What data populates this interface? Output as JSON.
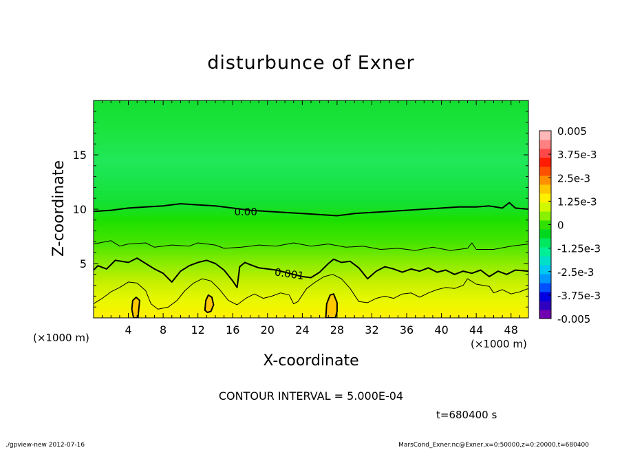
{
  "chart_data": {
    "type": "contour",
    "title": "disturbunce of Exner",
    "xlabel": "X-coordinate",
    "ylabel": "Z-coordinate",
    "x_unit_label": "(×1000 m)",
    "xlim": [
      0,
      50
    ],
    "ylim": [
      0,
      20
    ],
    "x_ticks": [
      4,
      8,
      12,
      16,
      20,
      24,
      28,
      32,
      36,
      40,
      44,
      48
    ],
    "y_ticks": [
      5,
      10,
      15
    ],
    "contour_interval_text": "CONTOUR INTERVAL = 5.000E-04",
    "contour_labels": [
      {
        "text": "0.00",
        "x": 17.5,
        "z": 9.7
      },
      {
        "text": "0.001",
        "x": 22.5,
        "z": 4.0
      }
    ],
    "contours": [
      {
        "level": 0.0,
        "bold": true,
        "points": [
          [
            0,
            9.8
          ],
          [
            2,
            9.9
          ],
          [
            4,
            10.1
          ],
          [
            6,
            10.2
          ],
          [
            8,
            10.3
          ],
          [
            10,
            10.5
          ],
          [
            12,
            10.4
          ],
          [
            14,
            10.3
          ],
          [
            16,
            10.1
          ],
          [
            18,
            9.9
          ],
          [
            20,
            9.8
          ],
          [
            22,
            9.7
          ],
          [
            24,
            9.6
          ],
          [
            26,
            9.5
          ],
          [
            28,
            9.4
          ],
          [
            30,
            9.6
          ],
          [
            32,
            9.7
          ],
          [
            34,
            9.8
          ],
          [
            36,
            9.9
          ],
          [
            38,
            10.0
          ],
          [
            40,
            10.1
          ],
          [
            42,
            10.2
          ],
          [
            44,
            10.2
          ],
          [
            45.5,
            10.3
          ],
          [
            47,
            10.1
          ],
          [
            47.8,
            10.6
          ],
          [
            48.5,
            10.1
          ],
          [
            50,
            10.0
          ]
        ]
      },
      {
        "level": 0.0005,
        "bold": false,
        "points": [
          [
            0,
            6.8
          ],
          [
            2,
            7.1
          ],
          [
            3,
            6.6
          ],
          [
            4,
            6.8
          ],
          [
            6,
            6.9
          ],
          [
            7,
            6.5
          ],
          [
            9,
            6.7
          ],
          [
            11,
            6.6
          ],
          [
            12,
            6.9
          ],
          [
            14,
            6.7
          ],
          [
            15,
            6.4
          ],
          [
            17,
            6.5
          ],
          [
            19,
            6.7
          ],
          [
            21,
            6.6
          ],
          [
            23,
            6.9
          ],
          [
            25,
            6.6
          ],
          [
            27,
            6.8
          ],
          [
            29,
            6.5
          ],
          [
            31,
            6.6
          ],
          [
            33,
            6.3
          ],
          [
            35,
            6.4
          ],
          [
            37,
            6.2
          ],
          [
            39,
            6.5
          ],
          [
            41,
            6.2
          ],
          [
            43,
            6.4
          ],
          [
            43.5,
            6.9
          ],
          [
            44,
            6.3
          ],
          [
            46,
            6.3
          ],
          [
            48,
            6.6
          ],
          [
            50,
            6.8
          ]
        ]
      },
      {
        "level": 0.001,
        "bold": true,
        "points": [
          [
            0,
            4.4
          ],
          [
            0.5,
            4.8
          ],
          [
            1.5,
            4.5
          ],
          [
            2.5,
            5.3
          ],
          [
            4,
            5.1
          ],
          [
            5,
            5.5
          ],
          [
            6,
            5.0
          ],
          [
            7,
            4.5
          ],
          [
            8,
            4.1
          ],
          [
            9,
            3.3
          ],
          [
            10,
            4.3
          ],
          [
            11,
            4.8
          ],
          [
            12,
            5.1
          ],
          [
            13,
            5.3
          ],
          [
            14,
            5.0
          ],
          [
            15,
            4.4
          ],
          [
            16,
            3.4
          ],
          [
            16.5,
            2.8
          ],
          [
            16.8,
            4.7
          ],
          [
            17.4,
            5.1
          ],
          [
            18,
            4.9
          ],
          [
            19,
            4.6
          ],
          [
            20,
            4.5
          ],
          [
            21,
            4.4
          ],
          [
            22,
            4.2
          ],
          [
            23,
            4.0
          ],
          [
            24,
            3.8
          ],
          [
            25,
            3.7
          ],
          [
            26,
            4.2
          ],
          [
            27,
            5.0
          ],
          [
            27.6,
            5.4
          ],
          [
            28.5,
            5.1
          ],
          [
            29.5,
            5.2
          ],
          [
            30.5,
            4.6
          ],
          [
            31.5,
            3.6
          ],
          [
            32.5,
            4.3
          ],
          [
            33.5,
            4.7
          ],
          [
            34.5,
            4.5
          ],
          [
            35.5,
            4.2
          ],
          [
            36.5,
            4.5
          ],
          [
            37.5,
            4.3
          ],
          [
            38.5,
            4.6
          ],
          [
            39.5,
            4.2
          ],
          [
            40.5,
            4.4
          ],
          [
            41.5,
            4.0
          ],
          [
            42.5,
            4.3
          ],
          [
            43.5,
            4.1
          ],
          [
            44.5,
            4.4
          ],
          [
            45.5,
            3.8
          ],
          [
            46.5,
            4.3
          ],
          [
            47.5,
            4.0
          ],
          [
            48.5,
            4.4
          ],
          [
            50,
            4.3
          ]
        ]
      },
      {
        "level": 0.0015,
        "bold": false,
        "points": [
          [
            0,
            1.3
          ],
          [
            1,
            1.8
          ],
          [
            2,
            2.4
          ],
          [
            3,
            2.8
          ],
          [
            4,
            3.3
          ],
          [
            5,
            3.2
          ],
          [
            6,
            2.5
          ],
          [
            6.6,
            1.3
          ],
          [
            7.4,
            0.8
          ],
          [
            8.6,
            1.0
          ],
          [
            9.6,
            1.6
          ],
          [
            10.5,
            2.5
          ],
          [
            11.5,
            3.2
          ],
          [
            12.5,
            3.6
          ],
          [
            13.5,
            3.4
          ],
          [
            14.5,
            2.6
          ],
          [
            15.5,
            1.6
          ],
          [
            16.5,
            1.2
          ],
          [
            17.5,
            1.8
          ],
          [
            18.5,
            2.2
          ],
          [
            19.5,
            1.8
          ],
          [
            20.5,
            2.0
          ],
          [
            21.5,
            2.3
          ],
          [
            22.5,
            2.1
          ],
          [
            23,
            1.3
          ],
          [
            23.5,
            1.5
          ],
          [
            24.5,
            2.7
          ],
          [
            25.5,
            3.3
          ],
          [
            26.5,
            3.8
          ],
          [
            27.5,
            4.0
          ],
          [
            28.5,
            3.6
          ],
          [
            29.5,
            2.7
          ],
          [
            30.5,
            1.5
          ],
          [
            31.5,
            1.4
          ],
          [
            32.5,
            1.8
          ],
          [
            33.5,
            2.0
          ],
          [
            34.5,
            1.8
          ],
          [
            35.5,
            2.2
          ],
          [
            36.5,
            2.3
          ],
          [
            37.5,
            1.9
          ],
          [
            38.5,
            2.3
          ],
          [
            39.5,
            2.6
          ],
          [
            40.5,
            2.8
          ],
          [
            41.5,
            2.7
          ],
          [
            42.5,
            3.0
          ],
          [
            43,
            3.6
          ],
          [
            44,
            3.1
          ],
          [
            45.5,
            2.9
          ],
          [
            46,
            2.3
          ],
          [
            47,
            2.6
          ],
          [
            48,
            2.2
          ],
          [
            49,
            2.4
          ],
          [
            50,
            2.7
          ]
        ]
      },
      {
        "level": 0.002,
        "bold": true,
        "closed": true,
        "points": [
          [
            4.6,
            0
          ],
          [
            4.4,
            0.8
          ],
          [
            4.5,
            1.6
          ],
          [
            4.9,
            1.9
          ],
          [
            5.3,
            1.6
          ],
          [
            5.2,
            0.8
          ],
          [
            5.1,
            0
          ]
        ]
      },
      {
        "level": 0.002,
        "bold": true,
        "closed": true,
        "points": [
          [
            12.8,
            0.7
          ],
          [
            12.9,
            1.6
          ],
          [
            13.2,
            2.1
          ],
          [
            13.6,
            1.9
          ],
          [
            13.8,
            1.2
          ],
          [
            13.5,
            0.6
          ],
          [
            13.1,
            0.5
          ]
        ]
      },
      {
        "level": 0.002,
        "bold": true,
        "closed": true,
        "points": [
          [
            26.7,
            0
          ],
          [
            26.8,
            1.3
          ],
          [
            27.2,
            2.1
          ],
          [
            27.6,
            2.2
          ],
          [
            28.0,
            1.4
          ],
          [
            28.0,
            0.6
          ],
          [
            27.8,
            0
          ]
        ]
      }
    ],
    "colorbar": {
      "tick_labels": [
        "0.005",
        "3.75e-3",
        "2.5e-3",
        "1.25e-3",
        "0",
        "-1.25e-3",
        "-2.5e-3",
        "-3.75e-3",
        "-0.005"
      ],
      "min": -0.005,
      "max": 0.005,
      "colors": [
        "#7000b0",
        "#3000c0",
        "#0000e0",
        "#0050ff",
        "#0098ff",
        "#00c8f0",
        "#00e0c8",
        "#00f098",
        "#00e860",
        "#00d820",
        "#30e000",
        "#88f000",
        "#d0f800",
        "#fff000",
        "#ffc800",
        "#ff9000",
        "#ff5000",
        "#ff1c00",
        "#ff4848",
        "#ff8080",
        "#ffb8b8"
      ]
    }
  },
  "time_label": "t=680400 s",
  "footer": {
    "left": "./gpview-new  2012-07-16",
    "right": "MarsCond_Exner.nc@Exner,x=0:50000,z=0:20000,t=680400"
  }
}
